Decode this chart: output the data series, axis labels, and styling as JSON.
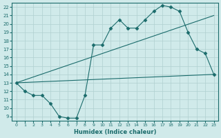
{
  "line1_x": [
    0,
    1,
    2,
    3,
    4,
    5,
    6,
    7,
    8,
    9,
    10,
    11,
    12,
    13,
    14,
    15,
    16,
    17,
    18,
    19,
    20,
    21,
    22,
    23
  ],
  "line1_y": [
    13,
    12,
    11.5,
    11.5,
    10.5,
    9.0,
    8.8,
    8.8,
    11.5,
    17.5,
    17.5,
    19.5,
    20.5,
    19.5,
    19.5,
    20.5,
    21.5,
    22.2,
    22.0,
    21.5,
    19.0,
    17.0,
    16.5,
    14.0
  ],
  "line2_x": [
    0,
    23
  ],
  "line2_y": [
    13,
    21.0
  ],
  "line3_x": [
    0,
    23
  ],
  "line3_y": [
    13,
    14.0
  ],
  "line_color": "#1a6b6b",
  "bg_color": "#d0eaea",
  "grid_color": "#b0d0d0",
  "xlabel": "Humidex (Indice chaleur)",
  "xlim": [
    -0.5,
    23.5
  ],
  "ylim": [
    8.5,
    22.5
  ],
  "xticks": [
    0,
    1,
    2,
    3,
    4,
    5,
    6,
    7,
    8,
    9,
    10,
    11,
    12,
    13,
    14,
    15,
    16,
    17,
    18,
    19,
    20,
    21,
    22,
    23
  ],
  "yticks": [
    9,
    10,
    11,
    12,
    13,
    14,
    15,
    16,
    17,
    18,
    19,
    20,
    21,
    22
  ],
  "marker": "D",
  "markersize": 2.5,
  "linewidth": 0.8
}
